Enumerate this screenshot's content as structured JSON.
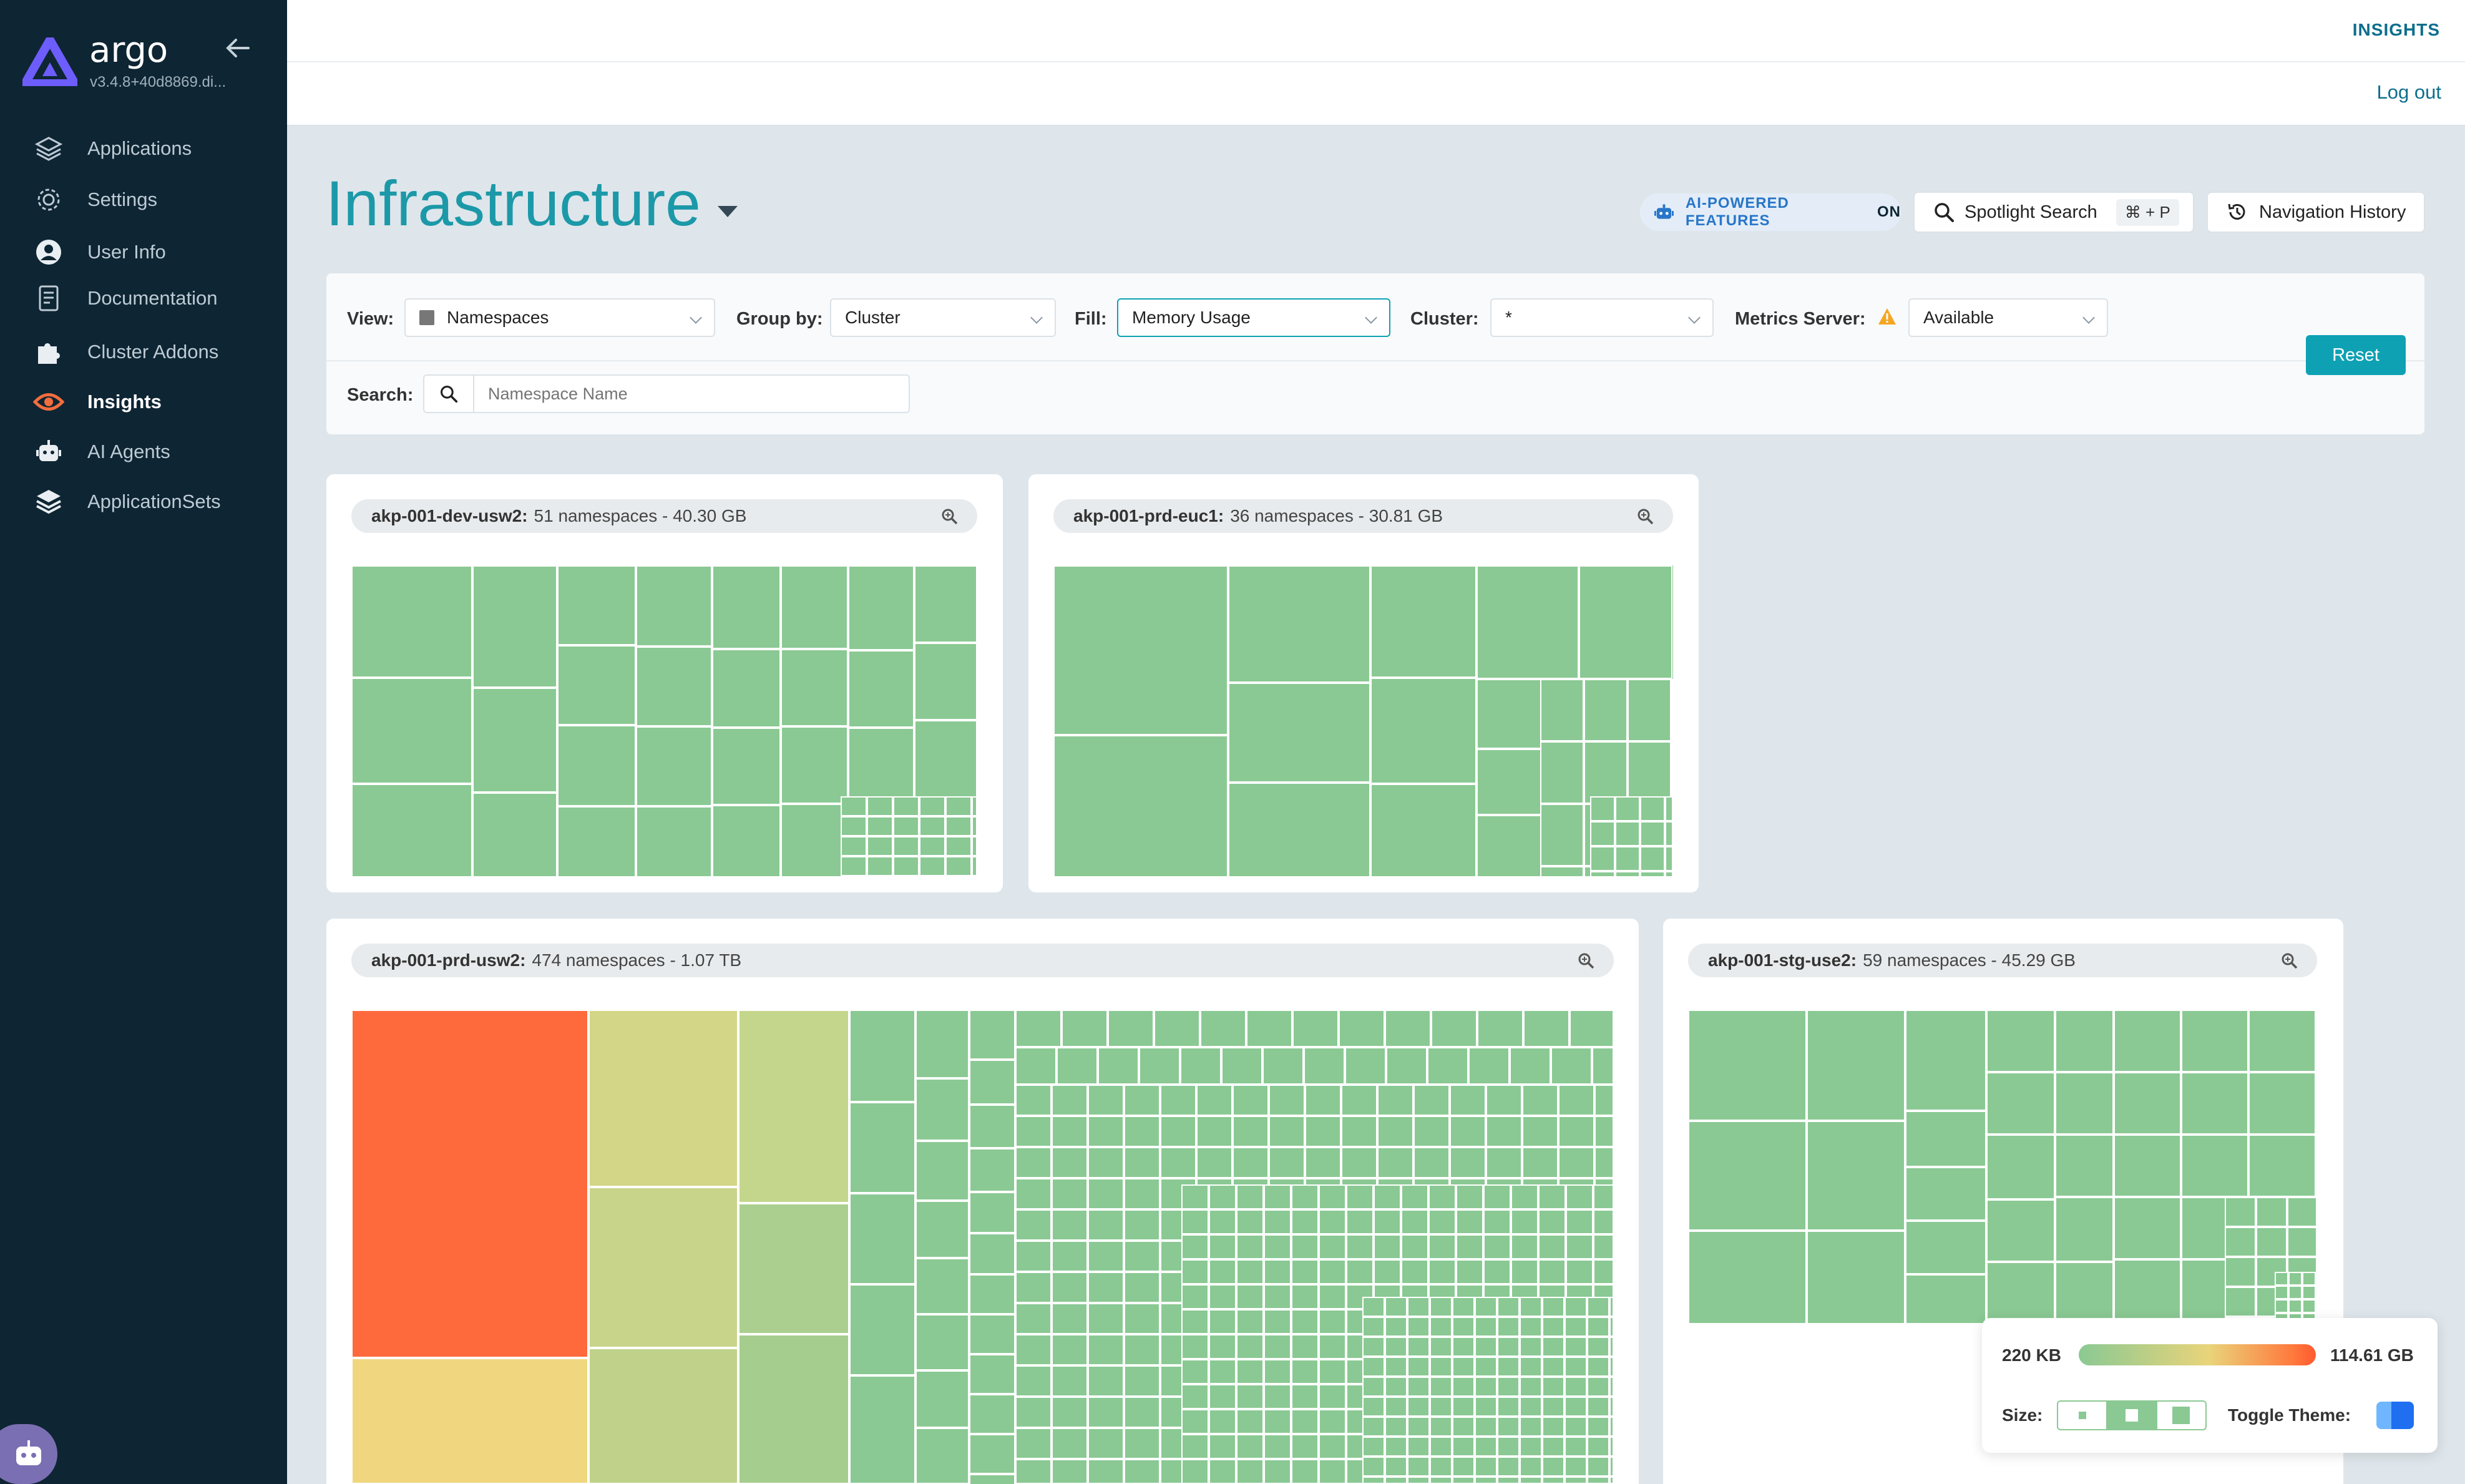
{
  "app": {
    "brand": "argo",
    "version": "v3.4.8+40d8869.di..."
  },
  "sidebar": {
    "items": [
      {
        "label": "Applications",
        "icon": "layers-icon"
      },
      {
        "label": "Settings",
        "icon": "gear-icon"
      },
      {
        "label": "User Info",
        "icon": "user-circle-icon"
      },
      {
        "label": "Documentation",
        "icon": "document-icon"
      },
      {
        "label": "Cluster Addons",
        "icon": "puzzle-icon"
      },
      {
        "label": "Insights",
        "icon": "eye-icon",
        "active": true
      },
      {
        "label": "AI Agents",
        "icon": "robot-icon"
      },
      {
        "label": "ApplicationSets",
        "icon": "stack-icon"
      }
    ]
  },
  "topbar": {
    "insights_link": "INSIGHTS",
    "logout": "Log out"
  },
  "header": {
    "title": "Infrastructure",
    "ai_badge": "AI-POWERED FEATURES",
    "ai_state": "ON",
    "spotlight_label": "Spotlight Search",
    "spotlight_shortcut": "⌘ + P",
    "history_label": "Navigation History"
  },
  "filters": {
    "view_label": "View:",
    "view_value": "Namespaces",
    "group_label": "Group by:",
    "group_value": "Cluster",
    "fill_label": "Fill:",
    "fill_value": "Memory Usage",
    "cluster_label": "Cluster:",
    "cluster_value": "*",
    "metrics_label": "Metrics Server:",
    "metrics_value": "Available",
    "search_label": "Search:",
    "search_placeholder": "Namespace Name",
    "reset": "Reset"
  },
  "clusters": [
    {
      "name": "akp-001-dev-usw2:",
      "summary": "51 namespaces - 40.30 GB"
    },
    {
      "name": "akp-001-prd-euc1:",
      "summary": "36 namespaces - 30.81 GB"
    },
    {
      "name": "akp-001-prd-usw2:",
      "summary": "474 namespaces - 1.07 TB"
    },
    {
      "name": "akp-001-stg-use2:",
      "summary": "59 namespaces - 45.29 GB"
    }
  ],
  "legend": {
    "min": "220 KB",
    "max": "114.61 GB",
    "size_label": "Size:",
    "theme_label": "Toggle Theme:"
  },
  "colors": {
    "accent": "#0ea1b4",
    "sidebar": "#0e2533",
    "low": "#8ac993",
    "high": "#ff6a3d"
  }
}
